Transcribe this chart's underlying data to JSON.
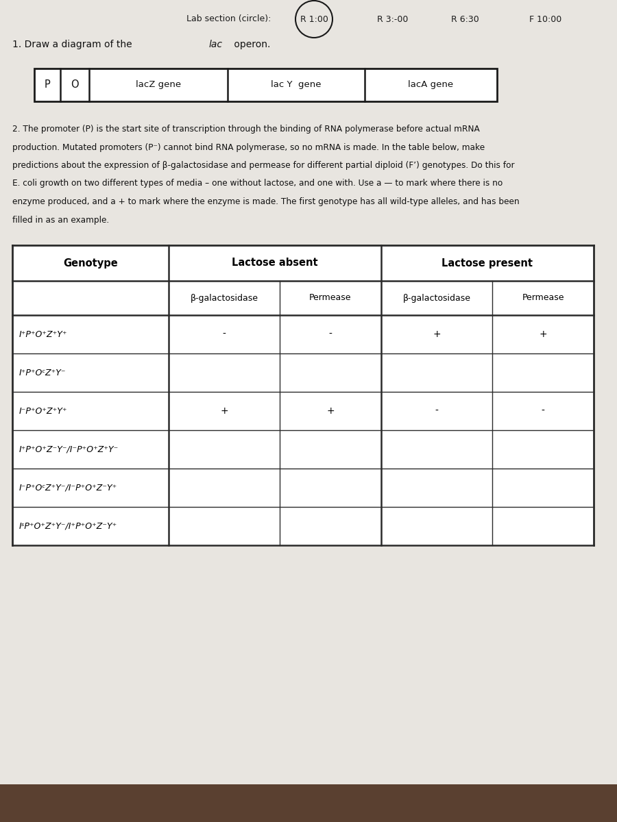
{
  "bg_color": "#d8d4cf",
  "page_bg": "#e8e5e0",
  "lab_section_label": "Lab section (circle):",
  "lab_times": [
    "R 1:00",
    "R 3:-00",
    "R 6:30",
    "F 10:00"
  ],
  "operon_boxes": [
    "P",
    "O",
    "lacZ gene",
    "lac Y  gene",
    "lacA gene"
  ],
  "genotypes": [
    "I⁺P⁺O⁺Z⁺Y⁺",
    "I⁺P⁺OᶜZ⁺Y⁻",
    "I⁻P⁺O⁺Z⁺Y⁺",
    "I⁺P⁺O⁺Z⁻Y⁻/I⁻P⁺O⁺Z⁺Y⁻",
    "I⁻P⁺OᶜZ⁺Y⁻/I⁻P⁺O⁺Z⁻Y⁺",
    "IˢP⁺O⁺Z⁺Y⁻/I⁺P⁺O⁺Z⁻Y⁺"
  ],
  "table_data": [
    [
      "-",
      "-",
      "+",
      "+"
    ],
    [
      "",
      "",
      "",
      ""
    ],
    [
      "+",
      "+",
      "-",
      "-"
    ],
    [
      "",
      "",
      "",
      ""
    ],
    [
      "",
      "",
      "",
      ""
    ],
    [
      "",
      "",
      "",
      ""
    ]
  ]
}
